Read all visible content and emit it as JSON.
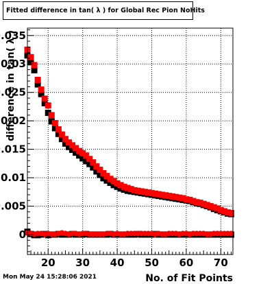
{
  "title": "Fitted difference in tan( λ ) for Global Rec Pion NoHits",
  "footer": {
    "date": "Mon May 24 15:28:06 2021"
  },
  "chart_data": {
    "type": "scatter",
    "title": "Fitted difference in tan( λ ) for Global Rec Pion NoHits",
    "xlabel": "No. of Fit Points",
    "ylabel": "difference in tan( λ )",
    "xlim": [
      14,
      73.5
    ],
    "ylim": [
      -0.0035,
      0.0363
    ],
    "grid": true,
    "x_ticks": [
      20,
      30,
      40,
      50,
      60,
      70
    ],
    "y_ticks": [
      0,
      0.005,
      0.01,
      0.015,
      0.02,
      0.025,
      0.03,
      0.035
    ],
    "y_tick_labels": [
      "0",
      "0.005",
      "0.01",
      "0.015",
      "0.02",
      "0.025",
      "0.03",
      "0.035"
    ],
    "series": [
      {
        "color": "#000000",
        "marker": "square",
        "x": [
          14,
          15,
          16,
          17,
          18,
          19,
          20,
          21,
          22,
          23,
          24,
          25,
          26,
          27,
          28,
          29,
          30,
          31,
          32,
          33,
          34,
          35,
          36,
          37,
          38,
          39,
          40,
          41,
          42,
          43,
          44,
          45,
          46,
          47,
          48,
          49,
          50,
          51,
          52,
          53,
          54,
          55,
          56,
          57,
          58,
          59,
          60,
          61,
          62,
          63,
          64,
          65,
          66,
          67,
          68,
          69,
          70,
          71,
          72,
          73
        ],
        "y": [
          0.0315,
          0.0303,
          0.0289,
          0.0264,
          0.0247,
          0.0231,
          0.0214,
          0.0199,
          0.0187,
          0.0177,
          0.0168,
          0.016,
          0.0154,
          0.0149,
          0.0144,
          0.0139,
          0.0134,
          0.0129,
          0.0124,
          0.0118,
          0.0111,
          0.0105,
          0.0099,
          0.0095,
          0.0091,
          0.0087,
          0.0084,
          0.0081,
          0.0079,
          0.0077,
          0.0076,
          0.0075,
          0.0074,
          0.0073,
          0.0072,
          0.0071,
          0.007,
          0.0069,
          0.0068,
          0.0067,
          0.0066,
          0.0065,
          0.0064,
          0.0063,
          0.0062,
          0.0061,
          0.006,
          0.0059,
          0.0057,
          0.0055,
          0.0054,
          0.0052,
          0.005,
          0.0048,
          0.0045,
          0.0043,
          0.0041,
          0.0039,
          0.0037,
          0.0036
        ]
      },
      {
        "color": "#ff0000",
        "marker": "square",
        "x": [
          14,
          15,
          16,
          17,
          18,
          19,
          20,
          21,
          22,
          23,
          24,
          25,
          26,
          27,
          28,
          29,
          30,
          31,
          32,
          33,
          34,
          35,
          36,
          37,
          38,
          39,
          40,
          41,
          42,
          43,
          44,
          45,
          46,
          47,
          48,
          49,
          50,
          51,
          52,
          53,
          54,
          55,
          56,
          57,
          58,
          59,
          60,
          61,
          62,
          63,
          64,
          65,
          66,
          67,
          68,
          69,
          70,
          71,
          72,
          73
        ],
        "y": [
          0.0325,
          0.0312,
          0.0298,
          0.0272,
          0.0255,
          0.0239,
          0.0227,
          0.021,
          0.0196,
          0.0185,
          0.0176,
          0.0168,
          0.0162,
          0.0157,
          0.0152,
          0.0147,
          0.0143,
          0.0139,
          0.0133,
          0.0127,
          0.012,
          0.0114,
          0.0108,
          0.0103,
          0.0098,
          0.0094,
          0.009,
          0.0087,
          0.0084,
          0.0082,
          0.008,
          0.0078,
          0.0077,
          0.0076,
          0.0075,
          0.0074,
          0.0073,
          0.0072,
          0.0071,
          0.007,
          0.0069,
          0.0068,
          0.0067,
          0.0066,
          0.0065,
          0.0064,
          0.0062,
          0.0061,
          0.0059,
          0.0057,
          0.0056,
          0.0054,
          0.0052,
          0.005,
          0.0048,
          0.0046,
          0.0043,
          0.0041,
          0.0039,
          0.0038
        ]
      },
      {
        "color": "#000000",
        "marker": "square",
        "x": [
          14,
          15,
          16,
          17,
          18,
          19,
          20,
          21,
          22,
          23,
          24,
          25,
          26,
          27,
          28,
          29,
          30,
          31,
          32,
          33,
          34,
          35,
          36,
          37,
          38,
          39,
          40,
          41,
          42,
          43,
          44,
          45,
          46,
          47,
          48,
          49,
          50,
          51,
          52,
          53,
          54,
          55,
          56,
          57,
          58,
          59,
          60,
          61,
          62,
          63,
          64,
          65,
          66,
          67,
          68,
          69,
          70,
          71,
          72,
          73
        ],
        "y": [
          0.0005,
          0.0001,
          -0.0001,
          -0.0001,
          0.0,
          0.0001,
          -0.0001,
          0.0,
          0.0,
          0.0001,
          0.0,
          0.0,
          0.0,
          0.0001,
          0.0,
          0.0,
          0.0,
          0.0001,
          0.0,
          0.0,
          0.0,
          0.0,
          0.0,
          0.0,
          0.0001,
          0.0,
          0.0,
          0.0,
          0.0,
          0.0,
          0.0,
          0.0,
          0.0001,
          0.0,
          0.0,
          0.0,
          0.0,
          0.0001,
          0.0,
          0.0,
          0.0,
          0.0,
          0.0,
          0.0,
          0.0,
          0.0,
          0.0,
          0.0,
          0.0,
          0.0,
          0.0,
          0.0,
          0.0,
          0.0,
          0.0,
          0.0,
          0.0,
          0.0,
          0.0,
          0.0
        ]
      },
      {
        "color": "#ff0000",
        "marker": "circle",
        "x": [
          14,
          15,
          16,
          17,
          18,
          19,
          20,
          21,
          22,
          23,
          24,
          25,
          26,
          27,
          28,
          29,
          30,
          31,
          32,
          33,
          34,
          35,
          36,
          37,
          38,
          39,
          40,
          41,
          42,
          43,
          44,
          45,
          46,
          47,
          48,
          49,
          50,
          51,
          52,
          53,
          54,
          55,
          56,
          57,
          58,
          59,
          60,
          61,
          62,
          63,
          64,
          65,
          66,
          67,
          68,
          69,
          70,
          71,
          72,
          73
        ],
        "y": [
          0.0003,
          0.0002,
          0.0001,
          0.0002,
          0.0002,
          0.0001,
          0.0002,
          0.0001,
          0.0001,
          0.0002,
          0.0003,
          0.0002,
          0.0001,
          0.0002,
          0.0002,
          0.0001,
          0.0002,
          0.0002,
          0.0001,
          0.0001,
          0.0001,
          0.0001,
          0.0001,
          0.0002,
          0.0002,
          0.0001,
          0.0002,
          0.0001,
          0.0001,
          0.0002,
          0.0002,
          0.0002,
          0.0002,
          0.0002,
          0.0002,
          0.0002,
          0.0002,
          0.0001,
          0.0002,
          0.0001,
          0.0001,
          0.0002,
          0.0002,
          0.0002,
          0.0001,
          0.0002,
          0.0002,
          0.0001,
          0.0002,
          0.0002,
          0.0002,
          0.0002,
          0.0001,
          0.0001,
          0.0002,
          0.0002,
          0.0002,
          0.0002,
          0.0002,
          0.0002
        ]
      }
    ]
  }
}
